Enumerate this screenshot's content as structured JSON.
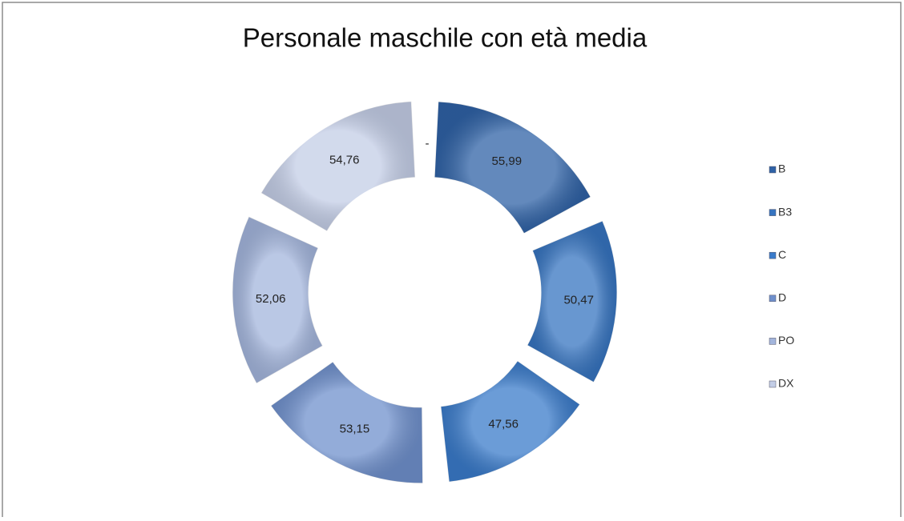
{
  "chart_data": {
    "type": "doughnut",
    "title": "Personale maschile con età media",
    "categories": [
      "B",
      "B3",
      "C",
      "D",
      "PO",
      "DX"
    ],
    "values": [
      55.99,
      50.47,
      47.56,
      53.15,
      52.06,
      54.76
    ],
    "value_labels": [
      "55,99",
      "50,47",
      "47,56",
      "53,15",
      "52,06",
      "54,76"
    ],
    "colors": [
      "#2f62a6",
      "#3674c0",
      "#3a7bca",
      "#6f90cc",
      "#a3b5dc",
      "#c3cde6"
    ],
    "annotation": "-",
    "legend": "right"
  }
}
